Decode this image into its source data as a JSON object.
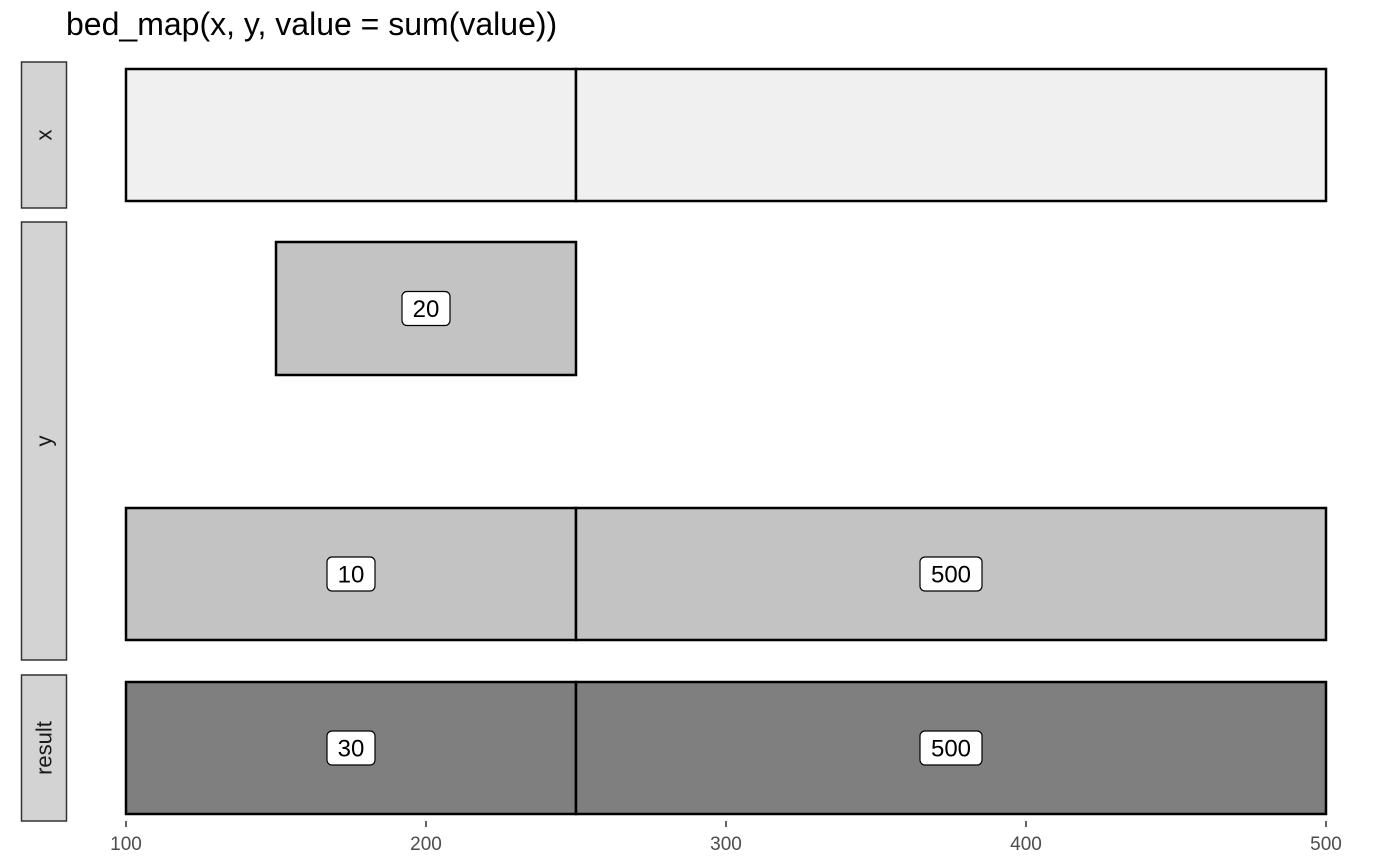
{
  "chart_data": {
    "type": "bar",
    "title": "bed_map(x, y, value = sum(value))",
    "xlim": [
      100,
      500
    ],
    "x_ticks": [
      100,
      200,
      300,
      400,
      500
    ],
    "grid": false,
    "facets": [
      {
        "label": "x",
        "rows": [
          {
            "intervals": [
              {
                "start": 100,
                "end": 250,
                "value": null,
                "label": ""
              },
              {
                "start": 250,
                "end": 500,
                "value": null,
                "label": ""
              }
            ]
          }
        ]
      },
      {
        "label": "y",
        "rows": [
          {
            "intervals": [
              {
                "start": 150,
                "end": 250,
                "value": 20,
                "label": "20"
              }
            ]
          },
          {
            "intervals": []
          },
          {
            "intervals": [
              {
                "start": 100,
                "end": 250,
                "value": 10,
                "label": "10"
              },
              {
                "start": 250,
                "end": 500,
                "value": 500,
                "label": "500"
              }
            ]
          }
        ]
      },
      {
        "label": "result",
        "rows": [
          {
            "intervals": [
              {
                "start": 100,
                "end": 250,
                "value": 30,
                "label": "30"
              },
              {
                "start": 250,
                "end": 500,
                "value": 500,
                "label": "500"
              }
            ]
          }
        ]
      }
    ],
    "colors": {
      "x_fill": "#f0f0f0",
      "y_fill": "#c3c3c3",
      "result_fill": "#7f7f7f",
      "strip_fill": "#d3d3d3",
      "outline": "#000000",
      "axis_text": "#4d4d4d"
    }
  }
}
